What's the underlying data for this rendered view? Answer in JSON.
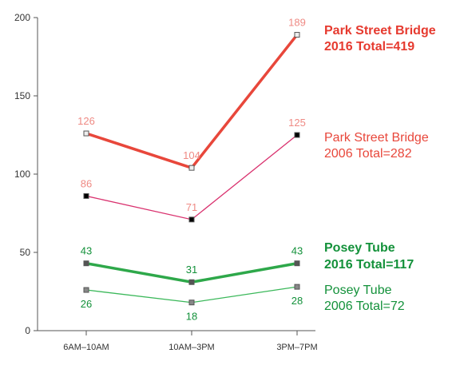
{
  "chart_data": {
    "type": "line",
    "title": "",
    "xlabel": "",
    "ylabel": "",
    "categories": [
      "6AM–10AM",
      "10AM–3PM",
      "3PM–7PM"
    ],
    "ylim": [
      0,
      200
    ],
    "yticks": [
      0,
      50,
      100,
      150,
      200
    ],
    "grid": false,
    "legend_placement": "right, beside each series end",
    "series": [
      {
        "name_line1": "Park Street Bridge",
        "name_line2": "2016 Total=419",
        "values": [
          126,
          104,
          189
        ],
        "labels": [
          "126",
          "104",
          "189"
        ],
        "line_color": "#e8473b",
        "label_color": "#ef8a84",
        "legend_color": "#e63a2f",
        "marker_fill": "#eeeeee",
        "legend_bold": true
      },
      {
        "name_line1": "Park Street Bridge",
        "name_line2": "2006 Total=282",
        "values": [
          86,
          71,
          125
        ],
        "labels": [
          "86",
          "71",
          "125"
        ],
        "line_color": "#d9316e",
        "label_color": "#ef8a84",
        "legend_color": "#e8473b",
        "marker_fill": "#000000",
        "legend_bold": false
      },
      {
        "name_line1": "Posey Tube",
        "name_line2": "2016 Total=117",
        "values": [
          43,
          31,
          43
        ],
        "labels": [
          "43",
          "31",
          "43"
        ],
        "line_color": "#2ea84a",
        "label_color": "#13913a",
        "legend_color": "#13913a",
        "marker_fill": "#555555",
        "legend_bold": true
      },
      {
        "name_line1": "Posey Tube",
        "name_line2": "2006 Total=72",
        "values": [
          26,
          18,
          28
        ],
        "labels": [
          "26",
          "18",
          "28"
        ],
        "line_color": "#3bb85a",
        "label_color": "#13913a",
        "legend_color": "#13913a",
        "marker_fill": "#888888",
        "legend_bold": false
      }
    ]
  }
}
